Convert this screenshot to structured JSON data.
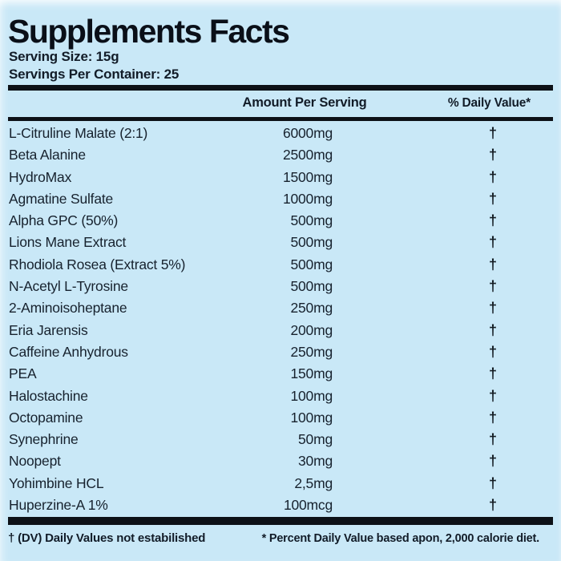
{
  "colors": {
    "background": "#c9e8f7",
    "text": "#121c28",
    "rule": "#0d1117"
  },
  "header": {
    "title": "Supplements Facts",
    "serving_size": "Serving Size: 15g",
    "servings_per_container": "Servings Per Container: 25"
  },
  "table": {
    "columns": {
      "amount": "Amount Per Serving",
      "daily_value": "% Daily Value*"
    },
    "rows": [
      {
        "name": "L-Citruline Malate (2:1)",
        "amount": "6000mg",
        "dv": "†"
      },
      {
        "name": "Beta Alanine",
        "amount": "2500mg",
        "dv": "†"
      },
      {
        "name": "HydroMax",
        "amount": "1500mg",
        "dv": "†"
      },
      {
        "name": "Agmatine Sulfate",
        "amount": "1000mg",
        "dv": "†"
      },
      {
        "name": "Alpha GPC (50%)",
        "amount": "500mg",
        "dv": "†"
      },
      {
        "name": "Lions Mane Extract",
        "amount": "500mg",
        "dv": "†"
      },
      {
        "name": "Rhodiola Rosea (Extract 5%)",
        "amount": "500mg",
        "dv": "†"
      },
      {
        "name": "N-Acetyl L-Tyrosine",
        "amount": "500mg",
        "dv": "†"
      },
      {
        "name": "2-Aminoisoheptane",
        "amount": "250mg",
        "dv": "†"
      },
      {
        "name": "Eria Jarensis",
        "amount": "200mg",
        "dv": "†"
      },
      {
        "name": "Caffeine Anhydrous",
        "amount": "250mg",
        "dv": "†"
      },
      {
        "name": "PEA",
        "amount": "150mg",
        "dv": "†"
      },
      {
        "name": "Halostachine",
        "amount": "100mg",
        "dv": "†"
      },
      {
        "name": "Octopamine",
        "amount": "100mg",
        "dv": "†"
      },
      {
        "name": "Synephrine",
        "amount": "50mg",
        "dv": "†"
      },
      {
        "name": "Noopept",
        "amount": "30mg",
        "dv": "†"
      },
      {
        "name": "Yohimbine HCL",
        "amount": "2,5mg",
        "dv": "†"
      },
      {
        "name": "Huperzine-A 1%",
        "amount": "100mcg",
        "dv": "†"
      }
    ]
  },
  "footnotes": {
    "left": "† (DV) Daily Values not estabilished",
    "right": "* Percent Daily Value based apon, 2,000 calorie diet."
  }
}
